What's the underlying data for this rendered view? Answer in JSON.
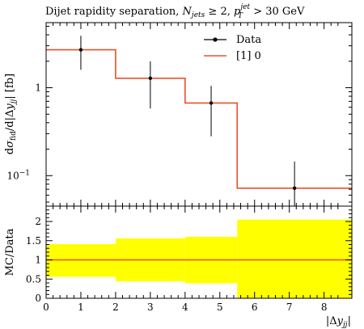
{
  "title": "Dijet rapidity separation, N_jets ≥ 2, p_T^jet > 30 GeV",
  "title_parts": {
    "lead": "Dijet rapidity separation, ",
    "njets": "N",
    "njets_sub": "jets",
    "cond1": " ≥ 2, ",
    "pt": "p",
    "pt_sub": "T",
    "pt_sup": "jet",
    "cond2": " > 30 GeV"
  },
  "colors": {
    "data": "#000000",
    "mc": "#e8502a",
    "band": "#ffff00",
    "ratio_line": "#e8502a"
  },
  "chart_data": [
    {
      "type": "line",
      "panel": "main",
      "ylabel": "dσ_fid / d|Δy_jj| [fb]",
      "ylabel_parts": {
        "d1": "d",
        "sigma": "σ",
        "sub": "fid",
        "rest": "/d|Δ",
        "y": "y",
        "ysub": "jj",
        "end": "| [fb]"
      },
      "yscale": "log",
      "ylim": [
        0.045,
        5.5
      ],
      "xlim": [
        0,
        8.8
      ],
      "y_ticks": [
        {
          "value": 1,
          "label": "1"
        },
        {
          "value": 0.1,
          "label": "10",
          "exp": "−1"
        }
      ],
      "bin_edges": [
        0,
        2,
        4,
        5.5,
        8.8
      ],
      "legend": {
        "position": "top-right",
        "entries": [
          {
            "name": "Data",
            "style": "marker"
          },
          {
            "name": "[1] 0",
            "style": "line"
          }
        ]
      },
      "series": [
        {
          "name": "Data",
          "kind": "points",
          "points": [
            {
              "x": 1.0,
              "y": 2.7,
              "yerr_low": 1.1,
              "yerr_high": 1.2
            },
            {
              "x": 3.0,
              "y": 1.28,
              "yerr_low": 0.7,
              "yerr_high": 0.72
            },
            {
              "x": 4.75,
              "y": 0.67,
              "yerr_low": 0.39,
              "yerr_high": 0.38
            },
            {
              "x": 7.15,
              "y": 0.072,
              "yerr_low": 0.027,
              "yerr_high": 0.073
            }
          ]
        },
        {
          "name": "[1] 0",
          "kind": "step",
          "values": [
            2.7,
            1.28,
            0.67,
            0.072
          ]
        }
      ]
    },
    {
      "type": "area",
      "panel": "ratio",
      "ylabel": "MC/Data",
      "xlabel": "|Δy_jj|",
      "xlabel_parts": {
        "bar1": "|Δ",
        "y": "y",
        "ysub": "jj",
        "bar2": "|"
      },
      "xlim": [
        0,
        8.8
      ],
      "ylim": [
        0,
        2.4
      ],
      "x_ticks": [
        0,
        1,
        2,
        3,
        4,
        5,
        6,
        7,
        8
      ],
      "y_ticks": [
        0,
        0.5,
        1,
        1.5,
        2
      ],
      "y_tick_labels": [
        "0",
        "0.5",
        "1",
        "1.5",
        "2"
      ],
      "reference": 1.0,
      "bands": [
        {
          "x0": 0,
          "x1": 2,
          "low": 0.56,
          "high": 1.41
        },
        {
          "x0": 2,
          "x1": 4,
          "low": 0.44,
          "high": 1.56
        },
        {
          "x0": 4,
          "x1": 5.5,
          "low": 0.39,
          "high": 1.6
        },
        {
          "x0": 5.5,
          "x1": 8.8,
          "low": 0.0,
          "high": 2.05
        }
      ]
    }
  ]
}
